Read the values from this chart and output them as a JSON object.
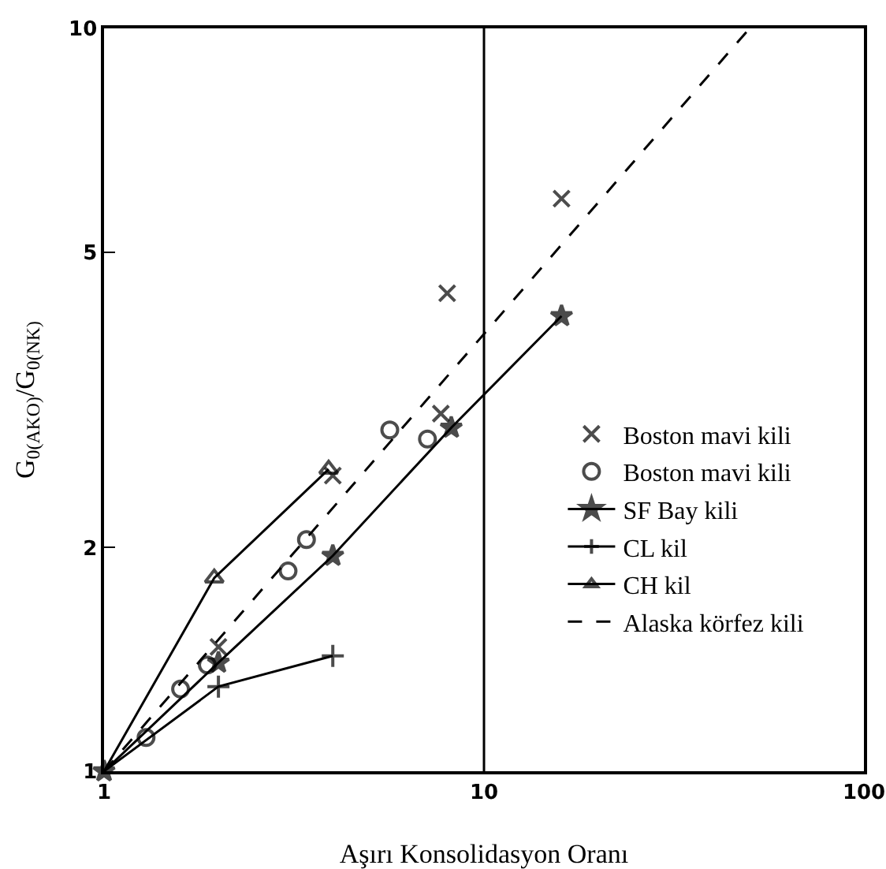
{
  "chart_data": {
    "type": "scatter",
    "xlabel": "Aşırı Konsolidasyon Oranı",
    "ylabel": "G$_{0(AKO)}$/G$_{0(NK)}$",
    "log": "xy",
    "xlim": [
      1,
      100
    ],
    "ylim": [
      1,
      10
    ],
    "xticks": [
      1,
      10,
      100
    ],
    "yticks": [
      1,
      2,
      5,
      10
    ],
    "grid": false,
    "legend": "right",
    "ref_lines": [
      {
        "axis": "x",
        "value": 10,
        "color": "#000000"
      }
    ],
    "series": [
      {
        "name": "Boston mavi kili",
        "type": "scatter",
        "marker": "x",
        "color": "#000000",
        "x": [
          2,
          4,
          7.7,
          8,
          16
        ],
        "values": [
          1.47,
          2.5,
          3.03,
          4.4,
          5.9
        ]
      },
      {
        "name": "Boston mavi kili",
        "type": "scatter",
        "marker": "circle",
        "color": "#000000",
        "x": [
          1.29,
          1.59,
          1.87,
          3.05,
          3.41,
          5.65,
          7.1
        ],
        "values": [
          1.11,
          1.29,
          1.39,
          1.86,
          2.05,
          2.88,
          2.8
        ]
      },
      {
        "name": "SF Bay kili",
        "type": "line",
        "marker": "star",
        "line_style": "solid",
        "color": "#000000",
        "x": [
          1,
          2,
          4,
          8.2,
          16
        ],
        "values": [
          1,
          1.4,
          1.95,
          2.9,
          4.1
        ]
      },
      {
        "name": "CL kil",
        "type": "line",
        "marker": "cross",
        "line_style": "solid",
        "color": "#000000",
        "x": [
          1,
          2,
          4
        ],
        "values": [
          1,
          1.3,
          1.43
        ]
      },
      {
        "name": "CH kil",
        "type": "line",
        "marker": "triangle",
        "line_style": "solid",
        "color": "#000000",
        "x": [
          1,
          1.95,
          3.9
        ],
        "values": [
          1,
          1.82,
          2.55
        ]
      },
      {
        "name": "Alaska körfez kili",
        "type": "line",
        "marker": "none",
        "line_style": "dashed",
        "color": "#000000",
        "x": [
          1,
          50
        ],
        "values": [
          1,
          10
        ]
      }
    ]
  }
}
